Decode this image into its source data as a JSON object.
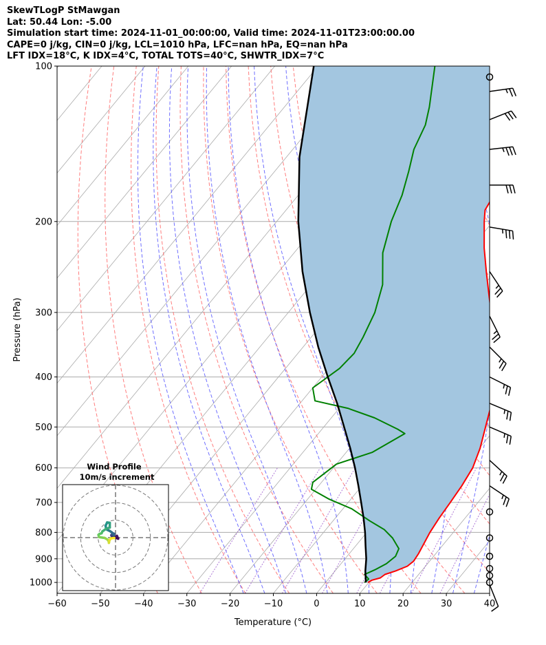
{
  "header": {
    "title": "SkewTLogP StMawgan",
    "location": "Lat: 50.44   Lon: -5.00",
    "times": "Simulation start time: 2024-11-01_00:00:00, Valid time: 2024-11-01T23:00:00.00",
    "indices1": "CAPE=0 j/kg, CIN=0 j/kg, LCL=1010 hPa, LFC=nan hPa, EQ=nan hPa",
    "indices2": "LFT IDX=18°C, K IDX=4°C, TOTAL TOTS=40°C, SHWTR_IDX=7°C"
  },
  "chart_data": {
    "type": "line",
    "subtype": "skew-t log-p",
    "xlabel": "Temperature (°C)",
    "ylabel": "Pressure (hPa)",
    "xlim": [
      -60,
      40
    ],
    "ylim": [
      1050,
      100
    ],
    "xticks": [
      -60,
      -50,
      -40,
      -30,
      -20,
      -10,
      0,
      10,
      20,
      30,
      40
    ],
    "xtick_labels": [
      "−60",
      "−50",
      "−40",
      "−30",
      "−20",
      "−10",
      "0",
      "10",
      "20",
      "30",
      "40"
    ],
    "yticks": [
      1000,
      900,
      800,
      700,
      600,
      500,
      400,
      300,
      200,
      100
    ],
    "ytick_labels": [
      "1000",
      "900",
      "800",
      "700",
      "600",
      "500",
      "400",
      "300",
      "200",
      "100"
    ],
    "grid": true,
    "colors": {
      "temperature": "#ff0000",
      "dewpoint": "#008000",
      "parcel": "#000000",
      "cape_fill": "#a3c6e0",
      "dry_adiabat": "#ff6666",
      "moist_adiabat": "#5555ff",
      "mixing_ratio": "#9955cc",
      "isotherm": "#aaaaaa"
    },
    "series": [
      {
        "name": "Temperature",
        "points": [
          [
            1000,
            9.8
          ],
          [
            990,
            10.3
          ],
          [
            980,
            11.8
          ],
          [
            965,
            12.2
          ],
          [
            950,
            14.0
          ],
          [
            930,
            15.8
          ],
          [
            910,
            16.3
          ],
          [
            880,
            16.0
          ],
          [
            850,
            15.5
          ],
          [
            800,
            14.6
          ],
          [
            750,
            14.0
          ],
          [
            700,
            13.6
          ],
          [
            650,
            13.1
          ],
          [
            600,
            12.2
          ],
          [
            550,
            10.2
          ],
          [
            500,
            7.4
          ],
          [
            450,
            4.3
          ],
          [
            400,
            0.8
          ],
          [
            370,
            -3.0
          ],
          [
            340,
            -7.0
          ],
          [
            310,
            -11.5
          ],
          [
            280,
            -16.5
          ],
          [
            250,
            -22.0
          ],
          [
            225,
            -27.0
          ],
          [
            200,
            -32.0
          ],
          [
            190,
            -34.0
          ],
          [
            175,
            -35.0
          ],
          [
            165,
            -35.5
          ],
          [
            155,
            -36.5
          ],
          [
            147,
            -39.0
          ],
          [
            140,
            -42.0
          ],
          [
            128,
            -45.0
          ],
          [
            117,
            -49.0
          ],
          [
            108,
            -52.0
          ],
          [
            100,
            -55.0
          ]
        ]
      },
      {
        "name": "Dewpoint",
        "points": [
          [
            1000,
            9.0
          ],
          [
            985,
            9.3
          ],
          [
            965,
            7.5
          ],
          [
            945,
            9.0
          ],
          [
            920,
            10.5
          ],
          [
            890,
            11.2
          ],
          [
            860,
            10.5
          ],
          [
            820,
            7.0
          ],
          [
            790,
            3.5
          ],
          [
            760,
            -1.5
          ],
          [
            720,
            -8.0
          ],
          [
            690,
            -15.0
          ],
          [
            660,
            -21.0
          ],
          [
            640,
            -22.0
          ],
          [
            590,
            -20.0
          ],
          [
            560,
            -14.0
          ],
          [
            515,
            -10.0
          ],
          [
            505,
            -12.5
          ],
          [
            480,
            -20.0
          ],
          [
            460,
            -28.0
          ],
          [
            445,
            -37.0
          ],
          [
            420,
            -40.0
          ],
          [
            385,
            -37.5
          ],
          [
            360,
            -37.0
          ],
          [
            335,
            -38.0
          ],
          [
            300,
            -40.0
          ],
          [
            265,
            -43.5
          ],
          [
            230,
            -49.5
          ],
          [
            200,
            -53.5
          ],
          [
            178,
            -56.0
          ],
          [
            160,
            -59.0
          ],
          [
            145,
            -62.0
          ],
          [
            130,
            -64.0
          ],
          [
            120,
            -66.5
          ],
          [
            100,
            -73.0
          ]
        ]
      },
      {
        "name": "Parcel",
        "points": [
          [
            1000,
            9.3
          ],
          [
            950,
            7.0
          ],
          [
            900,
            4.9
          ],
          [
            850,
            2.3
          ],
          [
            800,
            -0.4
          ],
          [
            750,
            -3.5
          ],
          [
            700,
            -7.0
          ],
          [
            650,
            -10.8
          ],
          [
            600,
            -15.0
          ],
          [
            550,
            -19.8
          ],
          [
            500,
            -25.3
          ],
          [
            450,
            -31.4
          ],
          [
            400,
            -38.6
          ],
          [
            350,
            -46.5
          ],
          [
            300,
            -55.0
          ],
          [
            250,
            -64.5
          ],
          [
            200,
            -75.0
          ],
          [
            150,
            -87.0
          ],
          [
            100,
            -101.0
          ]
        ]
      }
    ],
    "wind_barbs": [
      {
        "pressure": 1010,
        "u": -2,
        "v": 5
      },
      {
        "pressure": 1000,
        "calm": true
      },
      {
        "pressure": 970,
        "calm": true
      },
      {
        "pressure": 940,
        "calm": true
      },
      {
        "pressure": 890,
        "calm": true
      },
      {
        "pressure": 820,
        "calm": true
      },
      {
        "pressure": 730,
        "calm": true
      },
      {
        "pressure": 650,
        "u": -12,
        "v": 8
      },
      {
        "pressure": 580,
        "u": -11,
        "v": 10
      },
      {
        "pressure": 500,
        "u": -14,
        "v": 6
      },
      {
        "pressure": 450,
        "u": -12,
        "v": 5
      },
      {
        "pressure": 400,
        "u": -12,
        "v": 6
      },
      {
        "pressure": 350,
        "u": -10,
        "v": 10
      },
      {
        "pressure": 305,
        "u": -6,
        "v": 12
      },
      {
        "pressure": 250,
        "u": -8,
        "v": 12
      },
      {
        "pressure": 205,
        "u": -18,
        "v": 3
      },
      {
        "pressure": 170,
        "u": -17,
        "v": 0
      },
      {
        "pressure": 145,
        "u": -18,
        "v": -2
      },
      {
        "pressure": 127,
        "u": -15,
        "v": -6
      },
      {
        "pressure": 112,
        "u": -14,
        "v": -2
      },
      {
        "pressure": 105,
        "calm": true
      }
    ],
    "hodograph": {
      "title": "Wind Profile",
      "subtitle": "10m/s increment",
      "ring_step": 10,
      "rings": 3,
      "points": [
        [
          0,
          0
        ],
        [
          1.5,
          -0.6
        ],
        [
          0.8,
          1.0
        ],
        [
          -0.6,
          0.5
        ],
        [
          -1.3,
          1.1
        ],
        [
          -2.2,
          0.9
        ],
        [
          -2.4,
          1.4
        ],
        [
          -2.0,
          1.9
        ],
        [
          -1.4,
          2.4
        ],
        [
          -0.8,
          2.2
        ],
        [
          -1.0,
          1.4
        ],
        [
          -2.0,
          2.9
        ],
        [
          -3.3,
          3.8
        ],
        [
          -4.8,
          4.5
        ],
        [
          -5.4,
          5.2
        ],
        [
          -5.7,
          6.8
        ],
        [
          -4.8,
          8.7
        ],
        [
          -3.3,
          8.5
        ],
        [
          -3.3,
          5.8
        ],
        [
          -5.5,
          5.0
        ],
        [
          -7.5,
          3.6
        ],
        [
          -8.0,
          2.5
        ],
        [
          -9.2,
          2.1
        ],
        [
          -9.8,
          1.6
        ],
        [
          -9.5,
          0.3
        ],
        [
          -6.2,
          -0.2
        ],
        [
          -4.5,
          -1.2
        ],
        [
          -3.8,
          -2.4
        ],
        [
          -3.8,
          -3.0
        ],
        [
          -3.5,
          -1.6
        ],
        [
          -2.7,
          -0.5
        ],
        [
          -0.7,
          -0.2
        ]
      ]
    }
  }
}
